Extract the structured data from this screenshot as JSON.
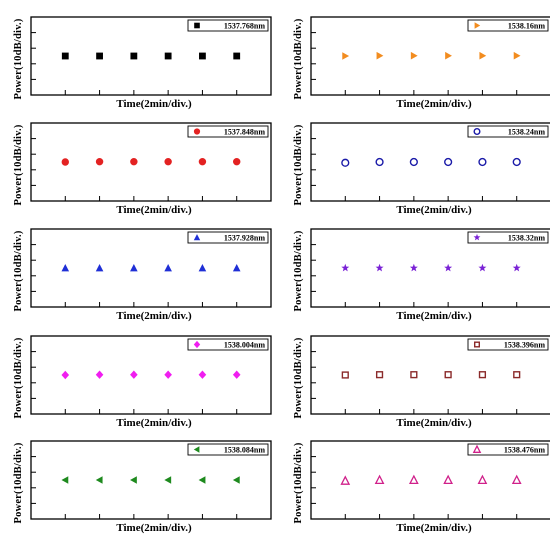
{
  "chart_data": [
    {
      "type": "scatter",
      "marker": "square",
      "color": "#000000",
      "x": [
        1,
        2,
        3,
        4,
        5,
        6
      ],
      "y": [
        0,
        0,
        0,
        0,
        0,
        0
      ],
      "legend": "1537.768nm",
      "xlabel": "Time(2min/div.)",
      "ylabel": "Power(10dB/div.)",
      "ylim": [
        -2.5,
        2.5
      ],
      "xlim": [
        0,
        7
      ],
      "legend_position": "top-right",
      "grid": false
    },
    {
      "type": "scatter",
      "marker": "triangle-right",
      "color": "#f28c1f",
      "x": [
        1,
        2,
        3,
        4,
        5,
        6
      ],
      "y": [
        0,
        0.02,
        0.02,
        0.02,
        0.02,
        0.02
      ],
      "legend": "1538.16nm",
      "xlabel": "Time(2min/div.)",
      "ylabel": "Power(10dB/div.)",
      "ylim": [
        -2.5,
        2.5
      ],
      "xlim": [
        0,
        7
      ],
      "legend_position": "top-right",
      "grid": false
    },
    {
      "type": "scatter",
      "marker": "circle",
      "color": "#e32222",
      "x": [
        1,
        2,
        3,
        4,
        5,
        6
      ],
      "y": [
        0,
        0.02,
        0.02,
        0.02,
        0.02,
        0.02
      ],
      "legend": "1537.848nm",
      "xlabel": "Time(2min/div.)",
      "ylabel": "Power(10dB/div.)",
      "ylim": [
        -2.5,
        2.5
      ],
      "xlim": [
        0,
        7
      ],
      "legend_position": "top-right",
      "grid": false
    },
    {
      "type": "scatter",
      "marker": "circle-open",
      "color": "#1a1aa8",
      "x": [
        1,
        2,
        3,
        4,
        5,
        6
      ],
      "y": [
        -0.05,
        0,
        0,
        0,
        0,
        0
      ],
      "legend": "1538.24nm",
      "xlabel": "Time(2min/div.)",
      "ylabel": "Power(10dB/div.)",
      "ylim": [
        -2.5,
        2.5
      ],
      "xlim": [
        0,
        7
      ],
      "legend_position": "top-right",
      "grid": false
    },
    {
      "type": "scatter",
      "marker": "triangle-up",
      "color": "#1f2fd6",
      "x": [
        1,
        2,
        3,
        4,
        5,
        6
      ],
      "y": [
        0,
        0,
        0,
        0,
        0,
        0
      ],
      "legend": "1537.928nm",
      "xlabel": "Time(2min/div.)",
      "ylabel": "Power(10dB/div.)",
      "ylim": [
        -2.5,
        2.5
      ],
      "xlim": [
        0,
        7
      ],
      "legend_position": "top-right",
      "grid": false
    },
    {
      "type": "scatter",
      "marker": "star",
      "color": "#7a22d6",
      "x": [
        1,
        2,
        3,
        4,
        5,
        6
      ],
      "y": [
        0,
        0,
        0,
        0,
        0,
        0
      ],
      "legend": "1538.32nm",
      "xlabel": "Time(2min/div.)",
      "ylabel": "Power(10dB/div.)",
      "ylim": [
        -2.5,
        2.5
      ],
      "xlim": [
        0,
        7
      ],
      "legend_position": "top-right",
      "grid": false
    },
    {
      "type": "scatter",
      "marker": "diamond",
      "color": "#f01ef0",
      "x": [
        1,
        2,
        3,
        4,
        5,
        6
      ],
      "y": [
        0,
        0.02,
        0.02,
        0.02,
        0.02,
        0.02
      ],
      "legend": "1538.004nm",
      "xlabel": "Time(2min/div.)",
      "ylabel": "Power(10dB/div.)",
      "ylim": [
        -2.5,
        2.5
      ],
      "xlim": [
        0,
        7
      ],
      "legend_position": "top-right",
      "grid": false
    },
    {
      "type": "scatter",
      "marker": "square-open",
      "color": "#8b2a2a",
      "x": [
        1,
        2,
        3,
        4,
        5,
        6
      ],
      "y": [
        0,
        0.02,
        0.02,
        0.02,
        0.02,
        0.02
      ],
      "legend": "1538.396nm",
      "xlabel": "Time(2min/div.)",
      "ylabel": "Power(10dB/div.)",
      "ylim": [
        -2.5,
        2.5
      ],
      "xlim": [
        0,
        7
      ],
      "legend_position": "top-right",
      "grid": false
    },
    {
      "type": "scatter",
      "marker": "triangle-left",
      "color": "#1e8a1e",
      "x": [
        1,
        2,
        3,
        4,
        5,
        6
      ],
      "y": [
        0,
        0,
        0,
        0,
        0,
        0
      ],
      "legend": "1538.084nm",
      "xlabel": "Time(2min/div.)",
      "ylabel": "Power(10dB/div.)",
      "ylim": [
        -2.5,
        2.5
      ],
      "xlim": [
        0,
        7
      ],
      "legend_position": "top-right",
      "grid": false
    },
    {
      "type": "scatter",
      "marker": "triangle-up-open",
      "color": "#d0208a",
      "x": [
        1,
        2,
        3,
        4,
        5,
        6
      ],
      "y": [
        -0.05,
        0,
        0,
        0,
        0,
        0
      ],
      "legend": "1538.476nm",
      "xlabel": "Time(2min/div.)",
      "ylabel": "Power(10dB/div.)",
      "ylim": [
        -2.5,
        2.5
      ],
      "xlim": [
        0,
        7
      ],
      "legend_position": "top-right",
      "grid": false
    }
  ]
}
